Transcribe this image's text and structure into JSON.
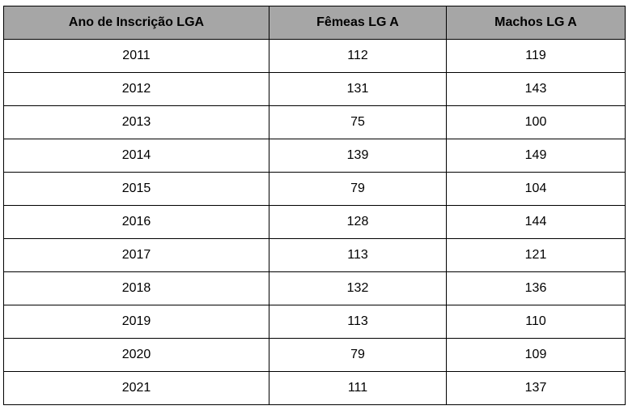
{
  "table": {
    "headers": [
      "Ano de Inscrição LGA",
      "Fêmeas LG A",
      "Machos LG A"
    ],
    "rows": [
      [
        "2011",
        "112",
        "119"
      ],
      [
        "2012",
        "131",
        "143"
      ],
      [
        "2013",
        "75",
        "100"
      ],
      [
        "2014",
        "139",
        "149"
      ],
      [
        "2015",
        "79",
        "104"
      ],
      [
        "2016",
        "128",
        "144"
      ],
      [
        "2017",
        "113",
        "121"
      ],
      [
        "2018",
        "132",
        "136"
      ],
      [
        "2019",
        "113",
        "110"
      ],
      [
        "2020",
        "79",
        "109"
      ],
      [
        "2021",
        "111",
        "137"
      ]
    ],
    "header_bg": "#a6a6a6",
    "border_color": "#000000"
  }
}
